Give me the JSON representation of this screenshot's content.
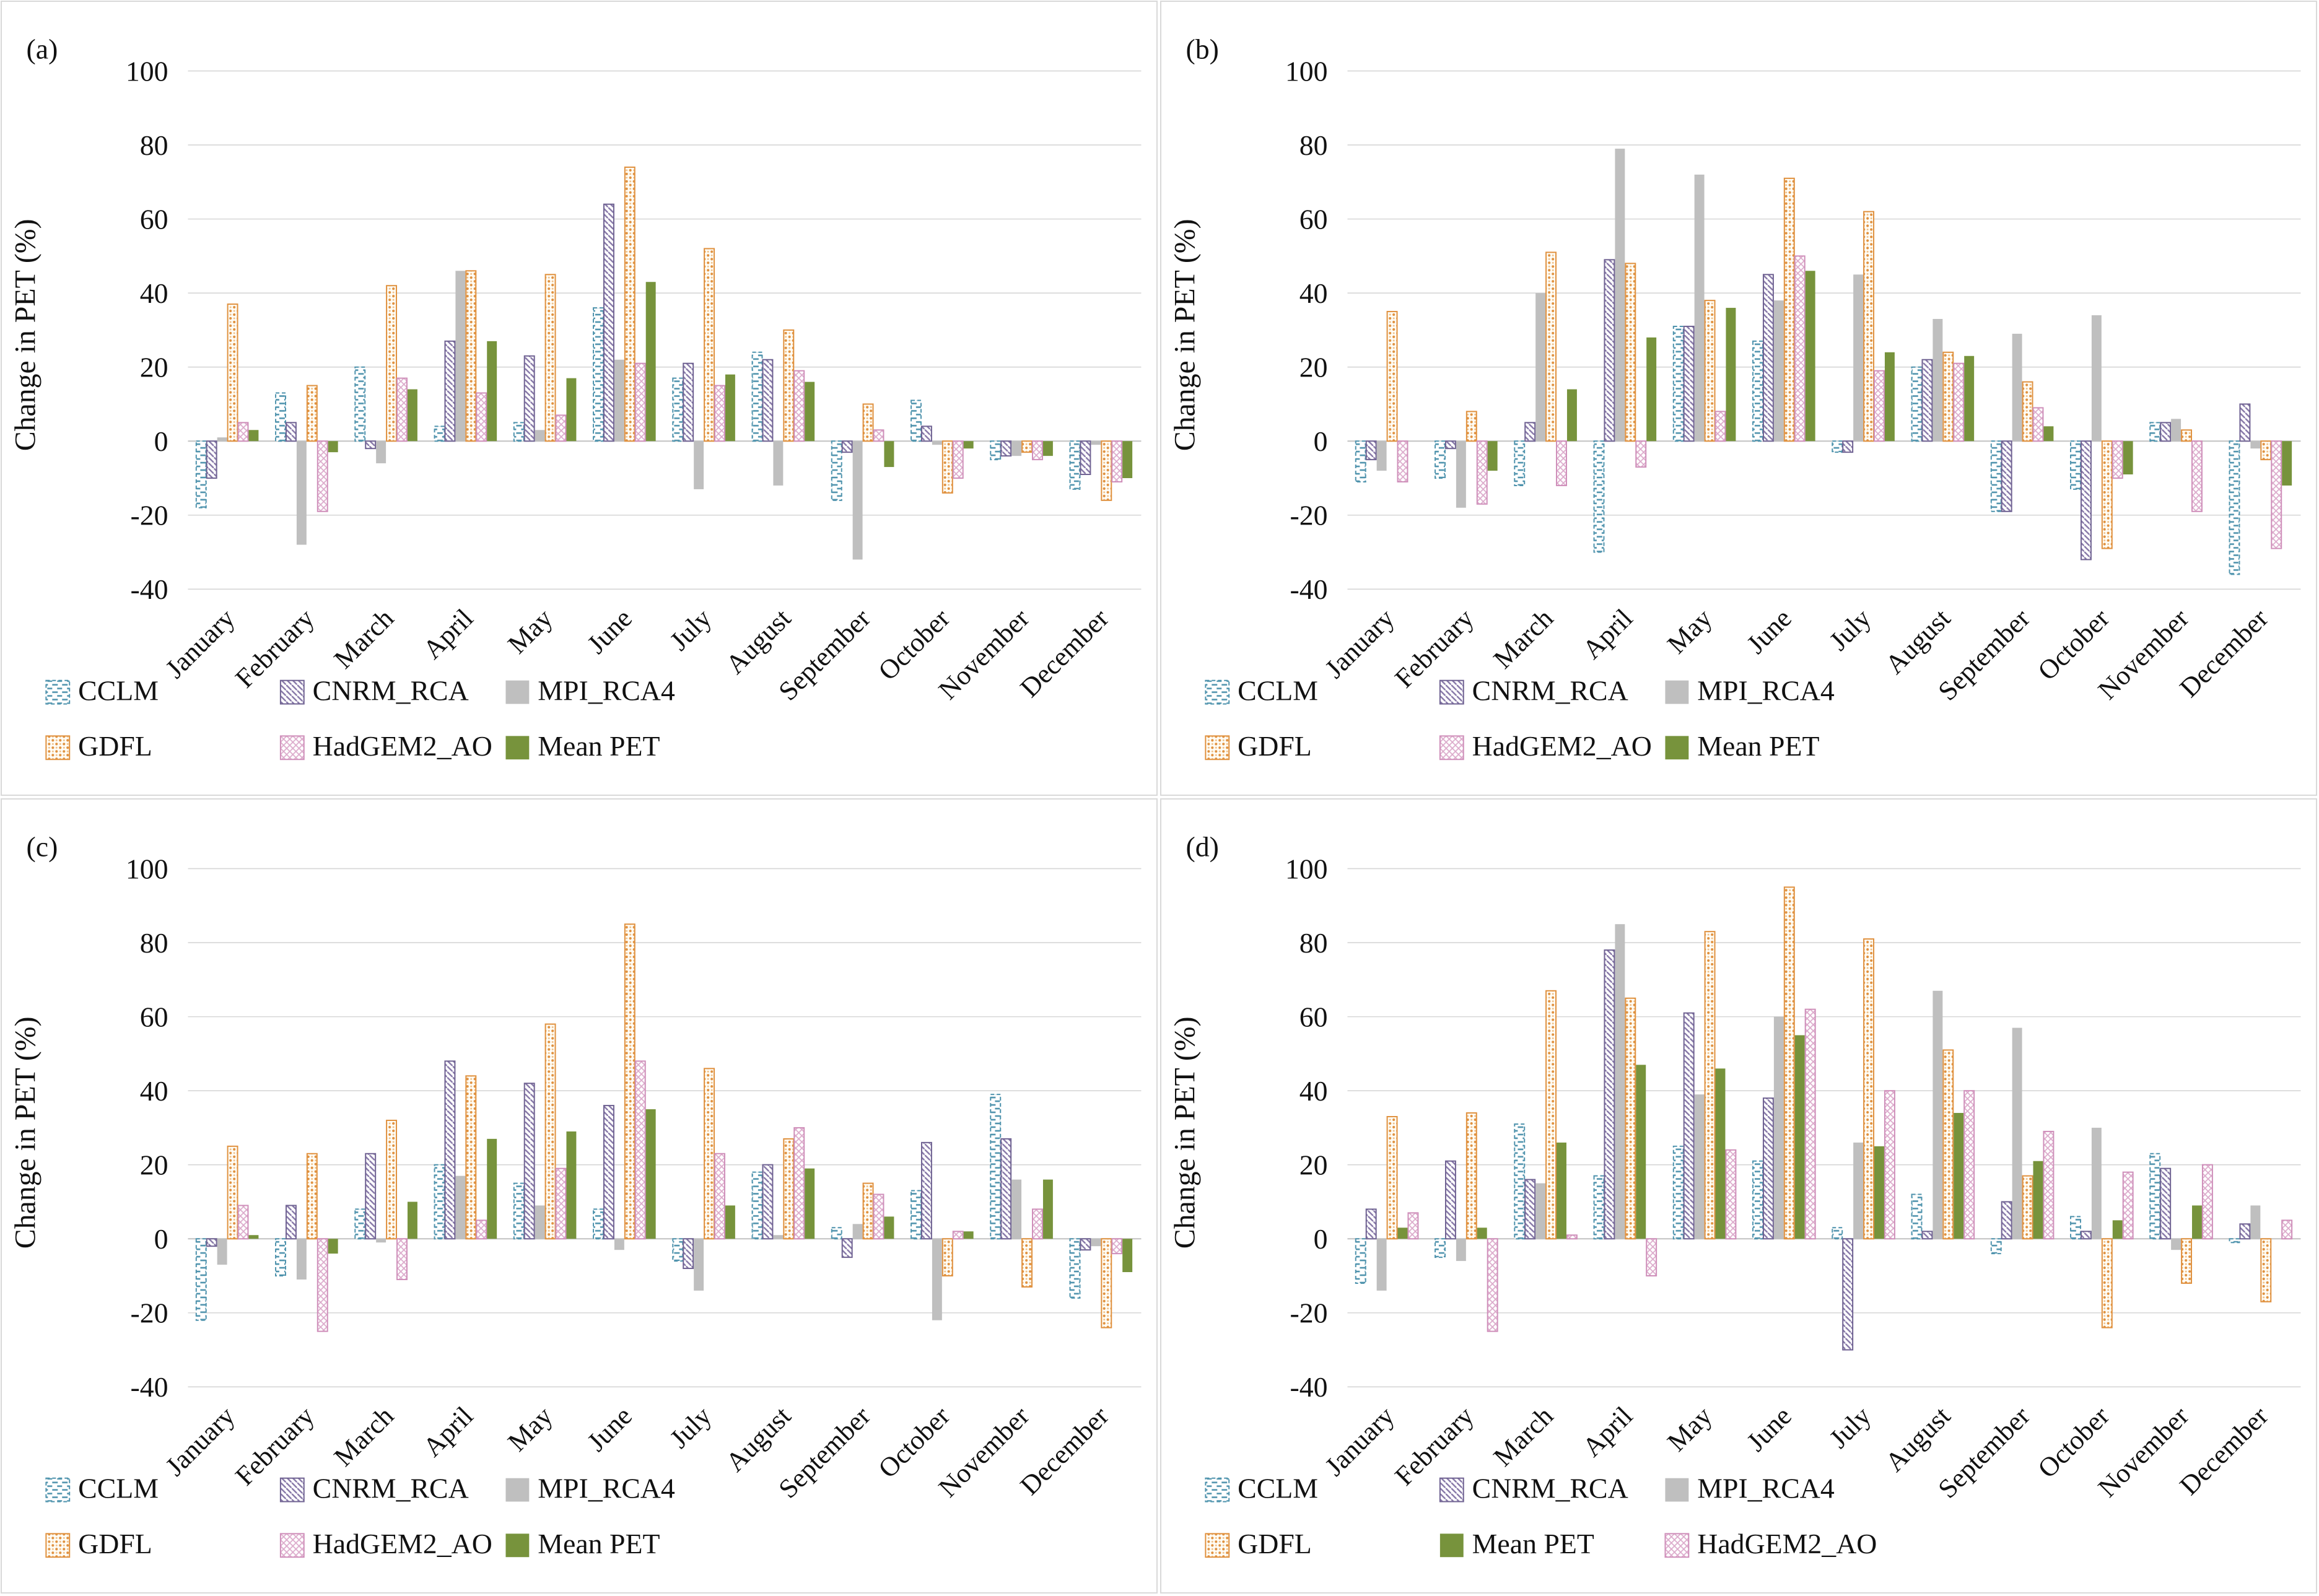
{
  "figure": {
    "y_axis_title": "Change in PET (%)",
    "months": [
      "January",
      "February",
      "March",
      "April",
      "May",
      "June",
      "July",
      "August",
      "September",
      "October",
      "November",
      "December"
    ],
    "yticks": [
      100,
      80,
      60,
      40,
      20,
      0,
      -20,
      -40
    ],
    "ylim": [
      -40,
      100
    ],
    "grid_color": "#d6d6d6",
    "zero_line_color": "#c2c2c2"
  },
  "palette": {
    "CCLM": {
      "pattern": "hdash",
      "color": "#4f93ad",
      "border": "#4f93ad",
      "border_dash": "6,4"
    },
    "CNRM_RCA": {
      "pattern": "diag",
      "color": "#8677a7",
      "border": "#6f6292"
    },
    "MPI_RCA4": {
      "pattern": "solid",
      "color": "#bfbfbf"
    },
    "GDFL": {
      "pattern": "dots",
      "color": "#e0913f",
      "color2": "#eec08a",
      "bg": "#fffdf6",
      "border": "#e0913f"
    },
    "HadGEM2_AO": {
      "pattern": "cross",
      "color": "#dcaacb",
      "border": "#cf8fba"
    },
    "Mean PET": {
      "pattern": "solid",
      "color": "#77933c"
    }
  },
  "chart_data": [
    {
      "panel": "(a)",
      "type": "bar",
      "xlabel": "",
      "ylabel": "Change in PET (%)",
      "ylim": [
        -40,
        100
      ],
      "grid": true,
      "legend_position": "bottom",
      "legend_rows": [
        [
          "CCLM",
          "CNRM_RCA",
          "MPI_RCA4"
        ],
        [
          "GDFL",
          "HadGEM2_AO",
          "Mean PET"
        ]
      ],
      "series": [
        {
          "name": "CCLM",
          "values": [
            -18,
            13,
            20,
            4,
            5,
            36,
            17,
            24,
            -16,
            11,
            -5,
            -13
          ]
        },
        {
          "name": "CNRM_RCA",
          "values": [
            -10,
            5,
            -2,
            27,
            23,
            64,
            21,
            22,
            -3,
            4,
            -4,
            -9
          ]
        },
        {
          "name": "MPI_RCA4",
          "values": [
            1,
            -28,
            -6,
            46,
            3,
            22,
            -13,
            -12,
            -32,
            -1,
            -4,
            -1
          ]
        },
        {
          "name": "GDFL",
          "values": [
            37,
            15,
            42,
            46,
            45,
            74,
            52,
            30,
            10,
            -14,
            -3,
            -16
          ]
        },
        {
          "name": "HadGEM2_AO",
          "values": [
            5,
            -19,
            17,
            13,
            7,
            21,
            15,
            19,
            3,
            -10,
            -5,
            -11
          ]
        },
        {
          "name": "Mean PET",
          "values": [
            3,
            -3,
            14,
            27,
            17,
            43,
            18,
            16,
            -7,
            -2,
            -4,
            -10
          ]
        }
      ]
    },
    {
      "panel": "(b)",
      "type": "bar",
      "xlabel": "",
      "ylabel": "Change in PET (%)",
      "ylim": [
        -40,
        100
      ],
      "grid": true,
      "legend_position": "bottom",
      "legend_rows": [
        [
          "CCLM",
          "CNRM_RCA",
          "MPI_RCA4"
        ],
        [
          "GDFL",
          "HadGEM2_AO",
          "Mean PET"
        ]
      ],
      "series": [
        {
          "name": "CCLM",
          "values": [
            -11,
            -10,
            -12,
            -30,
            31,
            27,
            -3,
            20,
            -19,
            -13,
            5,
            -36
          ]
        },
        {
          "name": "CNRM_RCA",
          "values": [
            -5,
            -2,
            5,
            49,
            31,
            45,
            -3,
            22,
            -19,
            -32,
            5,
            10
          ]
        },
        {
          "name": "MPI_RCA4",
          "values": [
            -8,
            -18,
            40,
            79,
            72,
            38,
            45,
            33,
            29,
            34,
            6,
            -2
          ]
        },
        {
          "name": "GDFL",
          "values": [
            35,
            8,
            51,
            48,
            38,
            71,
            62,
            24,
            16,
            -29,
            3,
            -5
          ]
        },
        {
          "name": "HadGEM2_AO",
          "values": [
            -11,
            -17,
            -12,
            -7,
            8,
            50,
            19,
            21,
            9,
            -10,
            -19,
            -29
          ]
        },
        {
          "name": "Mean PET",
          "values": [
            0,
            -8,
            14,
            28,
            36,
            46,
            24,
            23,
            4,
            -9,
            0,
            -12
          ]
        }
      ]
    },
    {
      "panel": "(c)",
      "type": "bar",
      "xlabel": "",
      "ylabel": "Change in PET (%)",
      "ylim": [
        -40,
        100
      ],
      "grid": true,
      "legend_position": "bottom",
      "legend_rows": [
        [
          "CCLM",
          "CNRM_RCA",
          "MPI_RCA4"
        ],
        [
          "GDFL",
          "HadGEM2_AO",
          "Mean PET"
        ]
      ],
      "series": [
        {
          "name": "CCLM",
          "values": [
            -22,
            -10,
            8,
            20,
            15,
            8,
            -6,
            18,
            3,
            13,
            39,
            -16
          ]
        },
        {
          "name": "CNRM_RCA",
          "values": [
            -2,
            9,
            23,
            48,
            42,
            36,
            -8,
            20,
            -5,
            26,
            27,
            -3
          ]
        },
        {
          "name": "MPI_RCA4",
          "values": [
            -7,
            -11,
            -1,
            17,
            9,
            -3,
            -14,
            1,
            4,
            -22,
            16,
            -2
          ]
        },
        {
          "name": "GDFL",
          "values": [
            25,
            23,
            32,
            44,
            58,
            85,
            46,
            27,
            15,
            -10,
            -13,
            -24
          ]
        },
        {
          "name": "HadGEM2_AO",
          "values": [
            9,
            -25,
            -11,
            5,
            19,
            48,
            23,
            30,
            12,
            2,
            8,
            -4
          ]
        },
        {
          "name": "Mean PET",
          "values": [
            1,
            -4,
            10,
            27,
            29,
            35,
            9,
            19,
            6,
            2,
            16,
            -9
          ]
        }
      ]
    },
    {
      "panel": "(d)",
      "type": "bar",
      "xlabel": "",
      "ylabel": "Change in PET (%)",
      "ylim": [
        -40,
        100
      ],
      "grid": true,
      "legend_position": "bottom",
      "legend_rows": [
        [
          "CCLM",
          "CNRM_RCA",
          "MPI_RCA4"
        ],
        [
          "GDFL",
          "Mean PET",
          "HadGEM2_AO"
        ]
      ],
      "series": [
        {
          "name": "CCLM",
          "values": [
            -12,
            -5,
            31,
            17,
            25,
            21,
            3,
            12,
            -4,
            6,
            23,
            -1
          ]
        },
        {
          "name": "CNRM_RCA",
          "values": [
            8,
            21,
            16,
            78,
            61,
            38,
            -30,
            2,
            10,
            2,
            19,
            4
          ]
        },
        {
          "name": "MPI_RCA4",
          "values": [
            -14,
            -6,
            15,
            85,
            39,
            60,
            26,
            67,
            57,
            30,
            -3,
            9
          ]
        },
        {
          "name": "GDFL",
          "values": [
            33,
            34,
            67,
            65,
            83,
            95,
            81,
            51,
            17,
            -24,
            -12,
            -17
          ]
        },
        {
          "name": "Mean PET",
          "values": [
            3,
            3,
            26,
            47,
            46,
            55,
            25,
            34,
            21,
            5,
            9,
            0
          ]
        },
        {
          "name": "HadGEM2_AO",
          "values": [
            7,
            -25,
            1,
            -10,
            24,
            62,
            40,
            40,
            29,
            18,
            20,
            5
          ]
        }
      ]
    }
  ]
}
